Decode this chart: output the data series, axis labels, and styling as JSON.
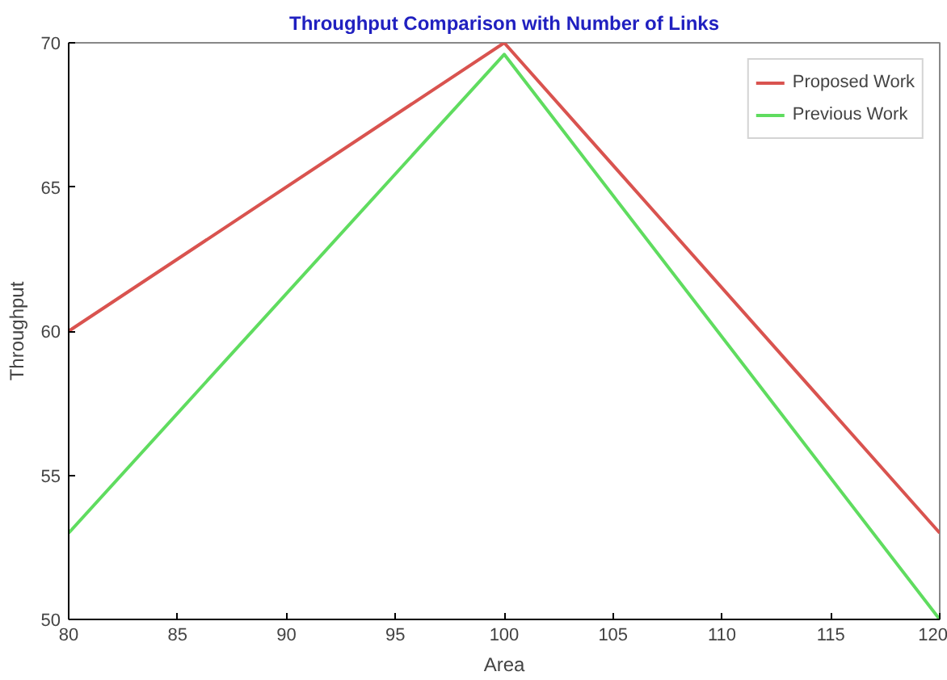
{
  "chart_data": {
    "type": "line",
    "title": "Throughput Comparison with Number of Links",
    "xlabel": "Area",
    "ylabel": "Throughput",
    "x": [
      80,
      100,
      120
    ],
    "series": [
      {
        "name": "Proposed Work",
        "color": "#d9534f",
        "values": [
          60,
          70,
          53
        ]
      },
      {
        "name": "Previous Work",
        "color": "#5fdc5f",
        "values": [
          53,
          69.6,
          50
        ]
      }
    ],
    "xlim": [
      80,
      120
    ],
    "ylim": [
      50,
      70
    ],
    "xticks": [
      80,
      85,
      90,
      95,
      100,
      105,
      110,
      115,
      120
    ],
    "yticks": [
      50,
      55,
      60,
      65,
      70
    ],
    "legend": "top right",
    "grid": false,
    "marker": "none",
    "line_style": "solid"
  }
}
